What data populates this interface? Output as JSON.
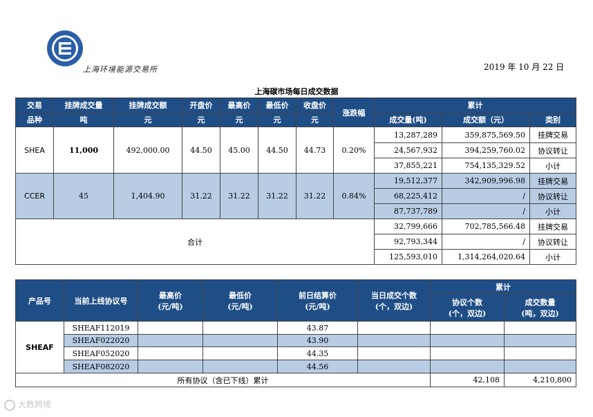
{
  "header": {
    "logo_script": "上海环境能源交易所",
    "date": "2019 年 10 月 22 日",
    "title": "上海碳市场每日成交数据"
  },
  "table1": {
    "headers": {
      "col1_a": "交易",
      "col1_b": "品种",
      "listed_volume": "挂牌成交量",
      "listed_amount": "挂牌成交额",
      "open": "开盘价",
      "high": "最高价",
      "low": "最低价",
      "close": "收盘价",
      "change": "涨跌幅",
      "cumulative": "累计",
      "unit_ton": "吨",
      "unit_yuan": "元",
      "cum_volume": "成交量(吨)",
      "cum_amount": "成交额（元）",
      "category": "类别"
    },
    "products": [
      {
        "name": "SHEA",
        "listed_volume": "11,000",
        "listed_amount": "492,000.00",
        "open": "44.50",
        "high": "45.00",
        "low": "44.50",
        "close": "44.73",
        "change": "0.20%",
        "rows": [
          {
            "volume": "13,287,289",
            "amount": "359,875,569.50",
            "category": "挂牌交易"
          },
          {
            "volume": "24,567,932",
            "amount": "394,259,760.02",
            "category": "协议转让"
          },
          {
            "volume": "37,855,221",
            "amount": "754,135,329.52",
            "category": "小计"
          }
        ]
      },
      {
        "name": "CCER",
        "listed_volume": "45",
        "listed_amount": "1,404.90",
        "open": "31.22",
        "high": "31.22",
        "low": "31.22",
        "close": "31.22",
        "change": "0.84%",
        "rows": [
          {
            "volume": "19,512,377",
            "amount": "342,909,996.98",
            "category": "挂牌交易"
          },
          {
            "volume": "68,225,412",
            "amount": "/",
            "category": "协议转让"
          },
          {
            "volume": "87,737,789",
            "amount": "/",
            "category": "小计"
          }
        ]
      }
    ],
    "total": {
      "label": "合计",
      "rows": [
        {
          "volume": "32,799,666",
          "amount": "702,785,566.48",
          "category": "挂牌交易"
        },
        {
          "volume": "92,793,344",
          "amount": "/",
          "category": "协议转让"
        },
        {
          "volume": "125,593,010",
          "amount": "1,314,264,020.64",
          "category": "小计"
        }
      ]
    }
  },
  "table2": {
    "headers": {
      "product": "产品号",
      "contract": "当前上线协议号",
      "high_a": "最高价",
      "high_b": "(元/吨)",
      "low_a": "最低价",
      "low_b": "(元/吨)",
      "settle_a": "前日结算价",
      "settle_b": "(元/吨)",
      "daily_a": "当日成交个数",
      "daily_b": "(个，双边)",
      "cumulative": "累计",
      "count_a": "协议个数",
      "count_b": "(个，双边)",
      "qty_a": "成交数量",
      "qty_b": "(吨，双边)"
    },
    "product": "SHEAF",
    "contracts": [
      {
        "code": "SHEAF112019",
        "high": "",
        "low": "",
        "settle": "43.87",
        "daily": "",
        "count": "",
        "qty": ""
      },
      {
        "code": "SHEAF022020",
        "high": "",
        "low": "",
        "settle": "43.90",
        "daily": "",
        "count": "",
        "qty": ""
      },
      {
        "code": "SHEAF052020",
        "high": "",
        "low": "",
        "settle": "44.35",
        "daily": "",
        "count": "",
        "qty": ""
      },
      {
        "code": "SHEAF082020",
        "high": "",
        "low": "",
        "settle": "44.56",
        "daily": "",
        "count": "",
        "qty": ""
      }
    ],
    "footer": {
      "label": "所有协议（含已下线）累计",
      "count": "42,108",
      "qty": "4,210,800"
    }
  },
  "watermark": "大数跨境",
  "colors": {
    "header_bg": "#1f4e86",
    "highlight_bg": "#b8cce4"
  }
}
